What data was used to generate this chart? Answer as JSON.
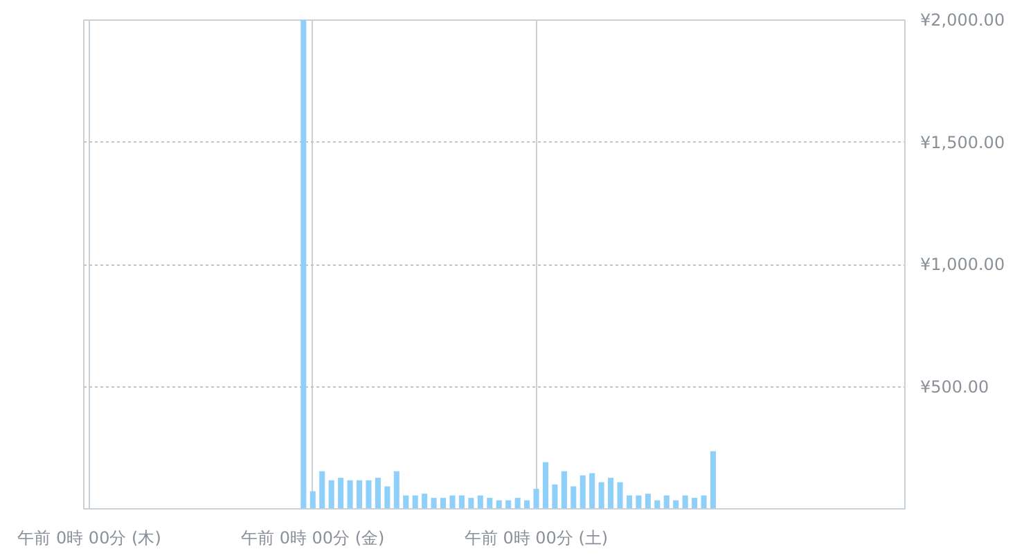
{
  "chart_data": {
    "type": "bar",
    "color": "#8fd0fa",
    "categories": [
      "午前 0時 00分 (木)",
      null,
      null,
      null,
      null,
      null,
      null,
      null,
      null,
      null,
      null,
      null,
      null,
      null,
      null,
      null,
      null,
      null,
      null,
      null,
      null,
      null,
      null,
      null,
      "午前 0時 00分 (金)",
      null,
      null,
      null,
      null,
      null,
      null,
      null,
      null,
      null,
      null,
      null,
      null,
      null,
      null,
      null,
      null,
      null,
      null,
      null,
      null,
      null,
      null,
      null,
      "午前 0時 00分 (土)",
      null,
      null,
      null,
      null,
      null,
      null,
      null,
      null,
      null,
      null,
      null,
      null,
      null,
      null,
      null,
      null,
      null,
      null,
      null,
      null,
      null,
      null,
      null,
      null,
      null,
      null,
      null,
      null,
      null,
      null,
      null,
      null,
      null,
      null,
      null,
      null,
      null,
      null,
      null
    ],
    "values": [
      0,
      0,
      0,
      0,
      0,
      0,
      0,
      0,
      0,
      0,
      0,
      0,
      0,
      0,
      0,
      0,
      0,
      0,
      0,
      0,
      0,
      0,
      0,
      2000,
      72,
      154,
      117,
      127,
      117,
      117,
      117,
      127,
      92,
      154,
      55,
      55,
      62,
      45,
      45,
      55,
      55,
      45,
      55,
      45,
      35,
      35,
      45,
      35,
      82,
      191,
      100,
      154,
      92,
      137,
      146,
      109,
      127,
      109,
      55,
      55,
      62,
      35,
      55,
      35,
      55,
      45,
      55,
      236,
      0,
      0,
      0,
      0,
      null,
      null,
      null,
      null,
      null,
      null,
      null,
      null,
      null,
      null,
      null,
      null,
      null,
      null,
      null,
      null
    ],
    "ylim": [
      0,
      2000
    ],
    "yticks": [
      {
        "value": 500,
        "label": "¥500.00"
      },
      {
        "value": 1000,
        "label": "¥1,000.00"
      },
      {
        "value": 1500,
        "label": "¥1,500.00"
      },
      {
        "value": 2000,
        "label": "¥2,000.00"
      }
    ],
    "grid": true
  }
}
